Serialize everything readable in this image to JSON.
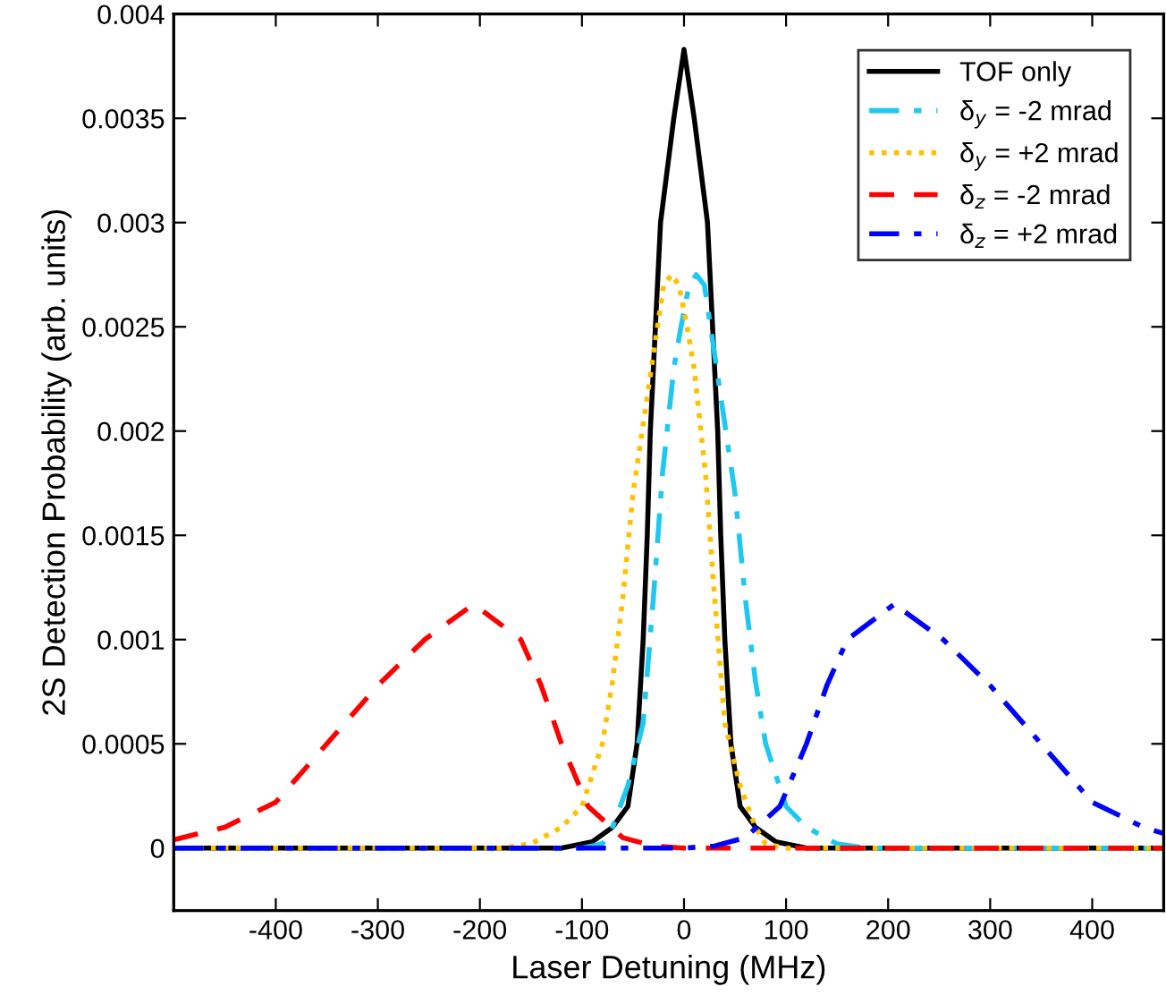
{
  "chart_data": {
    "type": "line",
    "xlabel": "Laser Detuning (MHz)",
    "ylabel": "2S Detection Probability (arb. units)",
    "xlim": [
      -500,
      470
    ],
    "ylim": [
      -0.0003,
      0.004
    ],
    "xticks": [
      -400,
      -300,
      -200,
      -100,
      0,
      100,
      200,
      300,
      400
    ],
    "yticks": [
      0,
      0.0005,
      0.001,
      0.0015,
      0.002,
      0.0025,
      0.003,
      0.0035,
      0.004
    ],
    "grid": false,
    "legend": "top right",
    "series": [
      {
        "name": "TOF only",
        "color": "#000000",
        "line_style": "solid",
        "x": [
          -500,
          -150,
          -120,
          -90,
          -70,
          -55,
          -46,
          -40,
          -36,
          -33,
          -28,
          -23,
          -10,
          0,
          10,
          23,
          28,
          33,
          36,
          40,
          46,
          55,
          70,
          90,
          120,
          150,
          470
        ],
        "values": [
          0,
          0,
          0,
          3e-05,
          0.0001,
          0.0002,
          0.0005,
          0.001,
          0.0015,
          0.002,
          0.0025,
          0.003,
          0.0035,
          0.00383,
          0.0035,
          0.003,
          0.0025,
          0.002,
          0.0015,
          0.001,
          0.0005,
          0.0002,
          0.0001,
          3e-05,
          0,
          0,
          0
        ]
      },
      {
        "name": "δ$_{y}$ = -2 mrad",
        "color": "#1ec8f0",
        "line_style": "dashdot",
        "x": [
          -500,
          -100,
          -80,
          -70,
          -55,
          -40,
          -30,
          -21,
          -10,
          -3,
          5,
          12,
          20,
          26,
          35,
          50,
          60,
          70,
          80,
          100,
          120,
          150,
          180,
          470
        ],
        "values": [
          0,
          0,
          2e-05,
          0.0001,
          0.0003,
          0.0006,
          0.0012,
          0.0018,
          0.0023,
          0.0025,
          0.0027,
          0.00275,
          0.0027,
          0.0025,
          0.0022,
          0.0017,
          0.0012,
          0.0008,
          0.0005,
          0.0002,
          0.0001,
          2e-05,
          0,
          0
        ]
      },
      {
        "name": "δ$_{y}$ = +2 mrad",
        "color": "#ffc000",
        "line_style": "dotted",
        "x": [
          -500,
          -180,
          -150,
          -120,
          -100,
          -80,
          -70,
          -60,
          -50,
          -35,
          -26,
          -20,
          -12,
          -5,
          3,
          10,
          21,
          30,
          40,
          55,
          70,
          80,
          100,
          470
        ],
        "values": [
          0,
          0,
          2e-05,
          0.0001,
          0.0002,
          0.0005,
          0.0008,
          0.0012,
          0.0017,
          0.0022,
          0.0025,
          0.0027,
          0.00275,
          0.0027,
          0.0025,
          0.0023,
          0.0018,
          0.0012,
          0.0006,
          0.0003,
          0.0001,
          2e-05,
          0,
          0
        ]
      },
      {
        "name": "δ$_{z}$ = -2 mrad",
        "color": "#ff0000",
        "line_style": "dashed",
        "x": [
          -500,
          -450,
          -400,
          -350,
          -300,
          -254,
          -206,
          -160,
          -140,
          -120,
          -94,
          -60,
          -30,
          0,
          470
        ],
        "values": [
          4e-05,
          0.0001,
          0.00022,
          0.0005,
          0.00078,
          0.001,
          0.00117,
          0.001,
          0.00078,
          0.0005,
          0.0002,
          5e-05,
          1e-05,
          0,
          0
        ]
      },
      {
        "name": "δ$_{z}$ = +2 mrad",
        "color": "#0000ff",
        "line_style": "dashdot",
        "x": [
          -500,
          0,
          30,
          60,
          94,
          120,
          140,
          160,
          206,
          254,
          300,
          350,
          400,
          450,
          470
        ],
        "values": [
          0,
          0,
          1e-05,
          5e-05,
          0.0002,
          0.0005,
          0.00078,
          0.001,
          0.00117,
          0.001,
          0.00078,
          0.0005,
          0.00022,
          0.0001,
          7e-05
        ]
      }
    ]
  }
}
